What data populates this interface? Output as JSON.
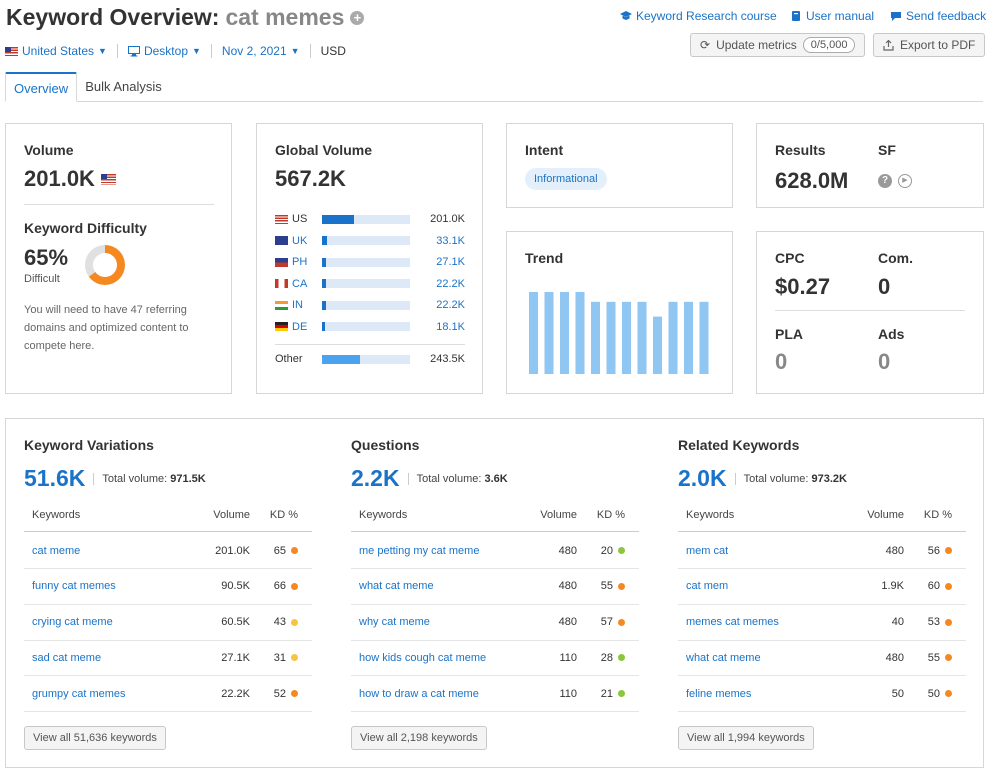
{
  "header": {
    "title": "Keyword Overview:",
    "keyword": "cat memes",
    "plus_icon": "+",
    "links": {
      "course": "Keyword Research course",
      "manual": "User manual",
      "feedback": "Send feedback"
    }
  },
  "filters": {
    "country": "United States",
    "device": "Desktop",
    "date": "Nov 2, 2021",
    "currency": "USD"
  },
  "buttons": {
    "update": "Update metrics",
    "update_count": "0/5,000",
    "export": "Export to PDF"
  },
  "tabs": [
    "Overview",
    "Bulk Analysis"
  ],
  "volume": {
    "label": "Volume",
    "value": "201.0K",
    "kd_label": "Keyword Difficulty",
    "kd_value": "65%",
    "kd_percent": 65,
    "kd_level": "Difficult",
    "kd_note": "You will need to have 47 referring domains and optimized content to compete here."
  },
  "global_volume": {
    "label": "Global Volume",
    "value": "567.2K",
    "countries": [
      {
        "code": "US",
        "value": "201.0K",
        "share": 0.36
      },
      {
        "code": "UK",
        "value": "33.1K",
        "share": 0.06
      },
      {
        "code": "PH",
        "value": "27.1K",
        "share": 0.05
      },
      {
        "code": "CA",
        "value": "22.2K",
        "share": 0.04
      },
      {
        "code": "IN",
        "value": "22.2K",
        "share": 0.04
      },
      {
        "code": "DE",
        "value": "18.1K",
        "share": 0.03
      }
    ],
    "other": {
      "label": "Other",
      "value": "243.5K",
      "share": 0.43
    }
  },
  "intent": {
    "label": "Intent",
    "value": "Informational"
  },
  "trend": {
    "label": "Trend",
    "values": [
      1.0,
      1.0,
      1.0,
      1.0,
      0.88,
      0.88,
      0.88,
      0.88,
      0.7,
      0.88,
      0.88,
      0.88
    ]
  },
  "results": {
    "label": "Results",
    "value": "628.0M",
    "sf_label": "SF",
    "help_icon": "?",
    "play_icon": "▶"
  },
  "cpc": {
    "cpc_label": "CPC",
    "cpc_value": "$0.27",
    "com_label": "Com.",
    "com_value": "0",
    "pla_label": "PLA",
    "pla_value": "0",
    "ads_label": "Ads",
    "ads_value": "0"
  },
  "columns": {
    "keywords": "Keywords",
    "volume": "Volume",
    "kd": "KD %"
  },
  "total_volume_label": "Total volume:",
  "sections": [
    {
      "title": "Keyword Variations",
      "count": "51.6K",
      "total_volume": "971.5K",
      "view_all": "View all 51,636 keywords",
      "rows": [
        {
          "keyword": "cat meme",
          "volume": "201.0K",
          "kd": "65",
          "color": "#f58920"
        },
        {
          "keyword": "funny cat memes",
          "volume": "90.5K",
          "kd": "66",
          "color": "#f58920"
        },
        {
          "keyword": "crying cat meme",
          "volume": "60.5K",
          "kd": "43",
          "color": "#f5c542"
        },
        {
          "keyword": "sad cat meme",
          "volume": "27.1K",
          "kd": "31",
          "color": "#f5c542"
        },
        {
          "keyword": "grumpy cat memes",
          "volume": "22.2K",
          "kd": "52",
          "color": "#f58920"
        }
      ]
    },
    {
      "title": "Questions",
      "count": "2.2K",
      "total_volume": "3.6K",
      "view_all": "View all 2,198 keywords",
      "rows": [
        {
          "keyword": "me petting my cat meme",
          "volume": "480",
          "kd": "20",
          "color": "#8cc63e"
        },
        {
          "keyword": "what cat meme",
          "volume": "480",
          "kd": "55",
          "color": "#f58920"
        },
        {
          "keyword": "why cat meme",
          "volume": "480",
          "kd": "57",
          "color": "#f58920"
        },
        {
          "keyword": "how kids cough cat meme",
          "volume": "110",
          "kd": "28",
          "color": "#8cc63e"
        },
        {
          "keyword": "how to draw a cat meme",
          "volume": "110",
          "kd": "21",
          "color": "#8cc63e"
        }
      ]
    },
    {
      "title": "Related Keywords",
      "count": "2.0K",
      "total_volume": "973.2K",
      "view_all": "View all 1,994 keywords",
      "rows": [
        {
          "keyword": "mem cat",
          "volume": "480",
          "kd": "56",
          "color": "#f58920"
        },
        {
          "keyword": "cat mem",
          "volume": "1.9K",
          "kd": "60",
          "color": "#f58920"
        },
        {
          "keyword": "memes cat memes",
          "volume": "40",
          "kd": "53",
          "color": "#f58920"
        },
        {
          "keyword": "what cat meme",
          "volume": "480",
          "kd": "55",
          "color": "#f58920"
        },
        {
          "keyword": "feline memes",
          "volume": "50",
          "kd": "50",
          "color": "#f58920"
        }
      ]
    }
  ]
}
